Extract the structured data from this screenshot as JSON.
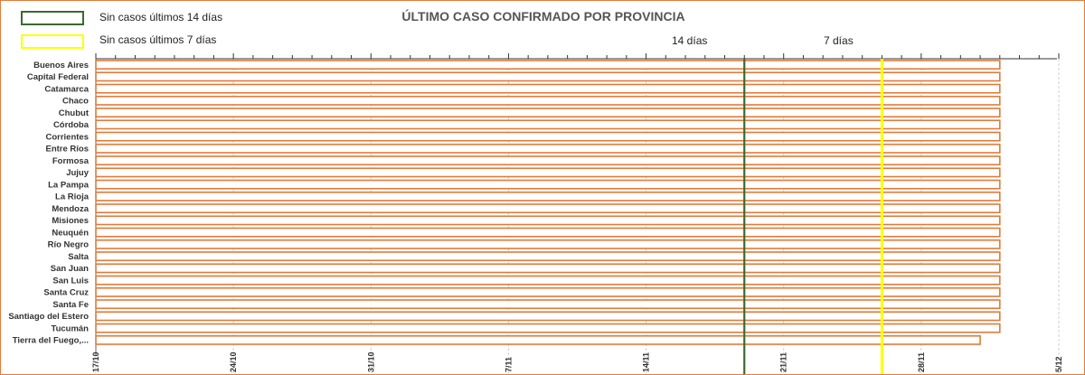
{
  "legend": {
    "items": [
      {
        "label": "Sin casos últimos 14 días",
        "color": "#3a6b2e"
      },
      {
        "label": "Sin casos últimos 7 días",
        "color": "#ffff00"
      }
    ]
  },
  "title": "ÚLTIMO CASO CONFIRMADO POR PROVINCIA",
  "markers": [
    {
      "label": "14 días",
      "date": "2020-11-19",
      "color": "#3a6b2e"
    },
    {
      "label": "7 días",
      "date": "2020-11-26",
      "color": "#ffff00"
    }
  ],
  "chart_data": {
    "type": "bar",
    "orientation": "horizontal",
    "title": "ÚLTIMO CASO CONFIRMADO POR PROVINCIA",
    "xlabel": "",
    "ylabel": "",
    "xlim": [
      "2020-10-17",
      "2020-12-05"
    ],
    "x_tick_labels": [
      "17/10",
      "24/10",
      "31/10",
      "7/11",
      "14/11",
      "21/11",
      "28/11",
      "5/12"
    ],
    "grid": true,
    "bar_color": "#e07b39",
    "categories": [
      "Buenos Aires",
      "Capital Federal",
      "Catamarca",
      "Chaco",
      "Chubut",
      "Córdoba",
      "Corrientes",
      "Entre Ríos",
      "Formosa",
      "Jujuy",
      "La Pampa",
      "La Rioja",
      "Mendoza",
      "Misiones",
      "Neuquén",
      "Río Negro",
      "Salta",
      "San Juan",
      "San Luis",
      "Santa Cruz",
      "Santa Fe",
      "Santiago del Estero",
      "Tucumán",
      "Tierra del Fuego,..."
    ],
    "values": [
      "2020-12-02",
      "2020-12-02",
      "2020-12-02",
      "2020-12-02",
      "2020-12-02",
      "2020-12-02",
      "2020-12-02",
      "2020-12-02",
      "2020-12-02",
      "2020-12-02",
      "2020-12-02",
      "2020-12-02",
      "2020-12-02",
      "2020-12-02",
      "2020-12-02",
      "2020-12-02",
      "2020-12-02",
      "2020-12-02",
      "2020-12-02",
      "2020-12-02",
      "2020-12-02",
      "2020-12-02",
      "2020-12-02",
      "2020-12-01"
    ]
  }
}
